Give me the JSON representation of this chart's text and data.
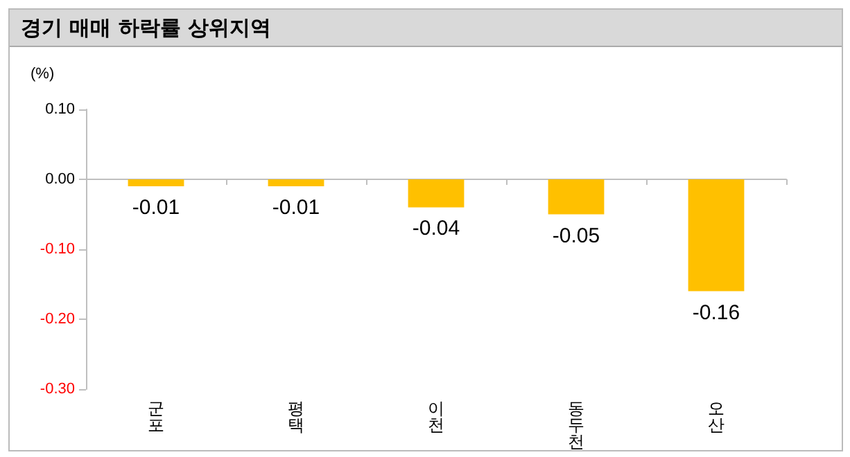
{
  "chart_data": {
    "type": "bar",
    "title": "경기 매매 하락률 상위지역",
    "ylabel": "(%)",
    "categories": [
      "군포",
      "평택",
      "이천",
      "동두천",
      "오산"
    ],
    "values": [
      -0.01,
      -0.01,
      -0.04,
      -0.05,
      -0.16
    ],
    "color": "#ffc000",
    "ylim": [
      -0.3,
      0.1
    ],
    "yticks": [
      {
        "value": 0.1,
        "label": "0.10"
      },
      {
        "value": 0,
        "label": "0.00"
      },
      {
        "value": -0.1,
        "label": "-0.10"
      },
      {
        "value": -0.2,
        "label": "-0.20"
      },
      {
        "value": -0.3,
        "label": "-0.30"
      }
    ],
    "data_labels": true
  }
}
